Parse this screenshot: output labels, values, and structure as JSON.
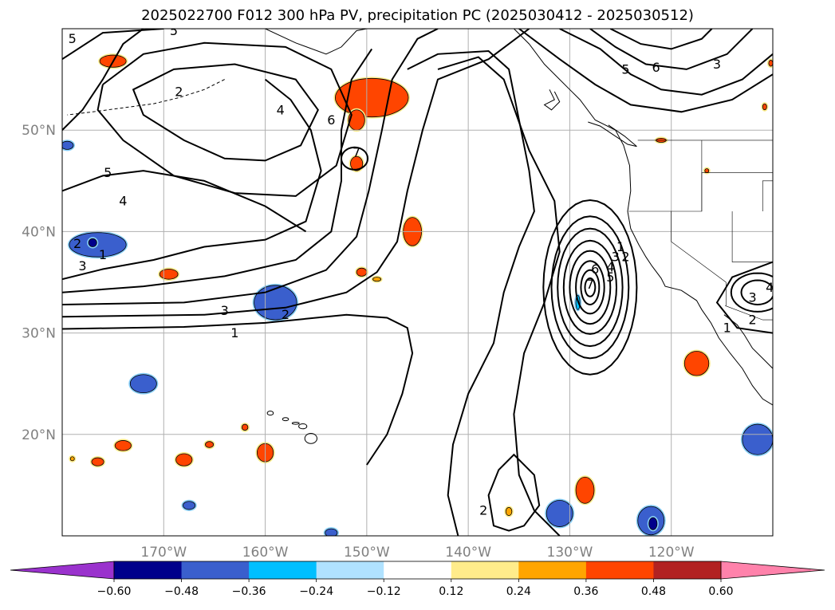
{
  "chart_data": {
    "type": "map-contour",
    "title": "2025022700 F012 300 hPa PV, precipitation PC (2025030412 - 2025030512)",
    "lon_range": [
      -180,
      -110
    ],
    "lat_range": [
      10,
      60
    ],
    "lon_ticks": [
      {
        "value": -170,
        "label": "170°W"
      },
      {
        "value": -160,
        "label": "160°W"
      },
      {
        "value": -150,
        "label": "150°W"
      },
      {
        "value": -140,
        "label": "140°W"
      },
      {
        "value": -130,
        "label": "130°W"
      },
      {
        "value": -120,
        "label": "120°W"
      }
    ],
    "lat_ticks": [
      {
        "value": 50,
        "label": "50°N"
      },
      {
        "value": 40,
        "label": "40°N"
      },
      {
        "value": 30,
        "label": "30°N"
      },
      {
        "value": 20,
        "label": "20°N"
      }
    ],
    "grid": true,
    "colorbar": {
      "orientation": "horizontal",
      "placement": "bottom",
      "extend": "both",
      "levels": [
        -0.6,
        -0.48,
        -0.36,
        -0.24,
        -0.12,
        0.12,
        0.24,
        0.36,
        0.48,
        0.6
      ],
      "level_labels": [
        "−0.60",
        "−0.48",
        "−0.36",
        "−0.24",
        "−0.12",
        "0.12",
        "0.24",
        "0.36",
        "0.48",
        "0.60"
      ],
      "colors": [
        "#9a32cd",
        "#00008b",
        "#3a5fcd",
        "#00bfff",
        "#b0e2ff",
        "#ffffff",
        "#ffec8b",
        "#ffa500",
        "#ff4500",
        "#b22222",
        "#ff82ab"
      ]
    },
    "pv_contour_labels": [
      {
        "lon": -151.0,
        "lat": 47.8,
        "text": "7"
      },
      {
        "lon": -153.5,
        "lat": 51.0,
        "text": "6"
      },
      {
        "lon": -168.5,
        "lat": 53.8,
        "text": "2"
      },
      {
        "lon": -169.0,
        "lat": 59.8,
        "text": "5"
      },
      {
        "lon": -179.0,
        "lat": 59.0,
        "text": "5"
      },
      {
        "lon": -158.5,
        "lat": 52.0,
        "text": "4"
      },
      {
        "lon": -175.5,
        "lat": 45.8,
        "text": "5"
      },
      {
        "lon": -174.0,
        "lat": 43.0,
        "text": "4"
      },
      {
        "lon": -178.0,
        "lat": 36.6,
        "text": "3"
      },
      {
        "lon": -178.5,
        "lat": 38.8,
        "text": "2"
      },
      {
        "lon": -176.0,
        "lat": 37.7,
        "text": "1"
      },
      {
        "lon": -164.0,
        "lat": 32.2,
        "text": "3"
      },
      {
        "lon": -158.0,
        "lat": 31.8,
        "text": "2"
      },
      {
        "lon": -163.0,
        "lat": 30.0,
        "text": "1"
      },
      {
        "lon": -138.5,
        "lat": 12.5,
        "text": "2"
      },
      {
        "lon": -125.0,
        "lat": 38.5,
        "text": "1"
      },
      {
        "lon": -124.5,
        "lat": 37.5,
        "text": "2"
      },
      {
        "lon": -125.5,
        "lat": 37.5,
        "text": "3"
      },
      {
        "lon": -126.0,
        "lat": 36.5,
        "text": "4"
      },
      {
        "lon": -127.5,
        "lat": 36.3,
        "text": "6"
      },
      {
        "lon": -126.0,
        "lat": 35.5,
        "text": "5"
      },
      {
        "lon": -128.0,
        "lat": 34.8,
        "text": "7"
      },
      {
        "lon": -124.5,
        "lat": 56.0,
        "text": "5"
      },
      {
        "lon": -121.5,
        "lat": 56.2,
        "text": "6"
      },
      {
        "lon": -115.5,
        "lat": 56.5,
        "text": "3"
      },
      {
        "lon": -112.0,
        "lat": 33.5,
        "text": "3"
      },
      {
        "lon": -112.0,
        "lat": 31.3,
        "text": "2"
      },
      {
        "lon": -114.5,
        "lat": 30.5,
        "text": "1"
      },
      {
        "lon": -110.3,
        "lat": 34.5,
        "text": "4"
      }
    ],
    "precipitation_pc_regions": [
      {
        "lon": -175.0,
        "lat": 56.8,
        "r_lon": 1.3,
        "r_lat": 0.6,
        "value": 0.4
      },
      {
        "lon": -149.5,
        "lat": 53.2,
        "r_lon": 3.6,
        "r_lat": 1.9,
        "value": 0.42
      },
      {
        "lon": -151.0,
        "lat": 51.0,
        "r_lon": 0.8,
        "r_lat": 1.0,
        "value": 0.4
      },
      {
        "lon": -151.0,
        "lat": 46.7,
        "r_lon": 0.6,
        "r_lat": 0.7,
        "value": 0.4
      },
      {
        "lon": -145.5,
        "lat": 40.0,
        "r_lon": 0.9,
        "r_lat": 1.4,
        "value": 0.38
      },
      {
        "lon": -169.5,
        "lat": 35.8,
        "r_lon": 0.9,
        "r_lat": 0.5,
        "value": 0.38
      },
      {
        "lon": -150.5,
        "lat": 36.0,
        "r_lon": 0.5,
        "r_lat": 0.4,
        "value": 0.37
      },
      {
        "lon": -149.0,
        "lat": 35.3,
        "r_lon": 0.4,
        "r_lat": 0.2,
        "value": 0.3
      },
      {
        "lon": -179.5,
        "lat": 48.5,
        "r_lon": 0.6,
        "r_lat": 0.4,
        "value": -0.4
      },
      {
        "lon": -176.5,
        "lat": 38.7,
        "r_lon": 2.8,
        "r_lat": 1.2,
        "value": -0.45
      },
      {
        "lon": -177.0,
        "lat": 38.9,
        "r_lon": 0.4,
        "r_lat": 0.4,
        "value": -0.55
      },
      {
        "lon": -159.0,
        "lat": 33.0,
        "r_lon": 2.1,
        "r_lat": 1.7,
        "value": -0.42
      },
      {
        "lon": -172.0,
        "lat": 25.0,
        "r_lon": 1.3,
        "r_lat": 0.9,
        "value": -0.4
      },
      {
        "lon": -160.0,
        "lat": 18.2,
        "r_lon": 0.8,
        "r_lat": 0.9,
        "value": 0.4
      },
      {
        "lon": -162.0,
        "lat": 20.7,
        "r_lon": 0.3,
        "r_lat": 0.3,
        "value": 0.38
      },
      {
        "lon": -165.5,
        "lat": 19.0,
        "r_lon": 0.4,
        "r_lat": 0.3,
        "value": 0.36
      },
      {
        "lon": -168.0,
        "lat": 17.5,
        "r_lon": 0.8,
        "r_lat": 0.6,
        "value": 0.38
      },
      {
        "lon": -174.0,
        "lat": 18.9,
        "r_lon": 0.8,
        "r_lat": 0.5,
        "value": 0.38
      },
      {
        "lon": -176.5,
        "lat": 17.3,
        "r_lon": 0.6,
        "r_lat": 0.4,
        "value": 0.38
      },
      {
        "lon": -179.0,
        "lat": 17.6,
        "r_lon": 0.2,
        "r_lat": 0.2,
        "value": 0.3
      },
      {
        "lon": -167.5,
        "lat": 13.0,
        "r_lon": 0.6,
        "r_lat": 0.4,
        "value": -0.4
      },
      {
        "lon": -128.5,
        "lat": 14.5,
        "r_lon": 0.9,
        "r_lat": 1.3,
        "value": 0.4
      },
      {
        "lon": -131.0,
        "lat": 12.2,
        "r_lon": 1.3,
        "r_lat": 1.3,
        "value": -0.42
      },
      {
        "lon": -122.0,
        "lat": 11.5,
        "r_lon": 1.3,
        "r_lat": 1.4,
        "value": -0.42
      },
      {
        "lon": -121.8,
        "lat": 11.2,
        "r_lon": 0.4,
        "r_lat": 0.6,
        "value": -0.55
      },
      {
        "lon": -117.5,
        "lat": 27.0,
        "r_lon": 1.2,
        "r_lat": 1.2,
        "value": 0.4
      },
      {
        "lon": -111.5,
        "lat": 19.5,
        "r_lon": 1.5,
        "r_lat": 1.5,
        "value": -0.42
      },
      {
        "lon": -153.5,
        "lat": 10.3,
        "r_lon": 0.6,
        "r_lat": 0.4,
        "value": -0.4
      },
      {
        "lon": -136.0,
        "lat": 12.4,
        "r_lon": 0.3,
        "r_lat": 0.4,
        "value": 0.3
      },
      {
        "lon": -116.5,
        "lat": 46.0,
        "r_lon": 0.2,
        "r_lat": 0.2,
        "value": 0.36
      },
      {
        "lon": -121.0,
        "lat": 49.0,
        "r_lon": 0.5,
        "r_lat": 0.2,
        "value": 0.36
      },
      {
        "lon": -110.2,
        "lat": 56.6,
        "r_lon": 0.2,
        "r_lat": 0.3,
        "value": 0.36
      },
      {
        "lon": -110.8,
        "lat": 52.3,
        "r_lon": 0.2,
        "r_lat": 0.3,
        "value": 0.36
      },
      {
        "lon": -129.2,
        "lat": 33.0,
        "r_lon": 0.2,
        "r_lat": 0.7,
        "value": -0.3
      }
    ]
  }
}
